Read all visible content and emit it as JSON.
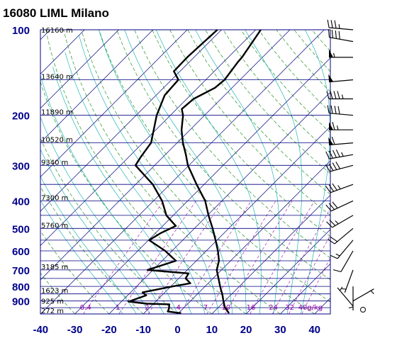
{
  "title": "16080 LIML Milano",
  "chart_data": {
    "type": "line",
    "title": "16080 LIML Milano",
    "x_axis_ticks": [
      -40,
      -30,
      -20,
      -10,
      0,
      10,
      20,
      30,
      40
    ],
    "pressure_ticks": [
      100,
      200,
      300,
      400,
      500,
      600,
      700,
      800,
      900
    ],
    "pressure_range": [
      100,
      1000
    ],
    "temperature_range": [
      -40,
      45
    ],
    "y_scale": "log",
    "height_labels": [
      {
        "p": 100,
        "text": "16160 m"
      },
      {
        "p": 150,
        "text": "13640 m"
      },
      {
        "p": 200,
        "text": "11890 m"
      },
      {
        "p": 250,
        "text": "10520 m"
      },
      {
        "p": 300,
        "text": "9340 m"
      },
      {
        "p": 400,
        "text": "7300 m"
      },
      {
        "p": 500,
        "text": "5760 m"
      },
      {
        "p": 700,
        "text": "3185 m"
      },
      {
        "p": 850,
        "text": "1623 m"
      },
      {
        "p": 925,
        "text": "925 m"
      },
      {
        "p": 1000,
        "text": "272 m"
      }
    ],
    "mixing_ratio_labels": [
      "0.4",
      "1",
      "2",
      "4",
      "7",
      "10",
      "16",
      "24",
      "32",
      "40g/kg"
    ],
    "series": [
      {
        "role": "temperature",
        "color": "#000000",
        "points": [
          [
            994,
            14.8
          ],
          [
            975,
            13.6
          ],
          [
            950,
            12.0
          ],
          [
            925,
            10.8
          ],
          [
            900,
            9.6
          ],
          [
            875,
            8.4
          ],
          [
            850,
            7.2
          ],
          [
            825,
            5.8
          ],
          [
            800,
            4.4
          ],
          [
            750,
            1.6
          ],
          [
            700,
            -1.4
          ],
          [
            650,
            -3.4
          ],
          [
            600,
            -6.6
          ],
          [
            550,
            -10.4
          ],
          [
            500,
            -14.7
          ],
          [
            450,
            -19.7
          ],
          [
            400,
            -24.9
          ],
          [
            350,
            -32.2
          ],
          [
            300,
            -40.3
          ],
          [
            275,
            -44.0
          ],
          [
            250,
            -48.3
          ],
          [
            225,
            -52.5
          ],
          [
            200,
            -56.3
          ],
          [
            190,
            -58.5
          ],
          [
            175,
            -58.0
          ],
          [
            160,
            -55.0
          ],
          [
            150,
            -54.5
          ],
          [
            130,
            -55.8
          ],
          [
            125,
            -56.0
          ],
          [
            100,
            -58.5
          ]
        ]
      },
      {
        "role": "dewpoint",
        "color": "#000000",
        "points": [
          [
            994,
            0.8
          ],
          [
            980,
            -3.6
          ],
          [
            960,
            -4.0
          ],
          [
            925,
            -5.2
          ],
          [
            920,
            -12.0
          ],
          [
            905,
            -17.9
          ],
          [
            860,
            -14.6
          ],
          [
            840,
            -16.5
          ],
          [
            800,
            -9.4
          ],
          [
            780,
            -5.2
          ],
          [
            750,
            -8.0
          ],
          [
            720,
            -8.6
          ],
          [
            700,
            -21.6
          ],
          [
            650,
            -16.0
          ],
          [
            600,
            -22.0
          ],
          [
            550,
            -29.8
          ],
          [
            520,
            -28.5
          ],
          [
            490,
            -26.2
          ],
          [
            450,
            -32.0
          ],
          [
            400,
            -37.5
          ],
          [
            350,
            -45.0
          ],
          [
            300,
            -55.6
          ],
          [
            280,
            -56.5
          ],
          [
            250,
            -57.6
          ],
          [
            200,
            -64.0
          ],
          [
            170,
            -67.5
          ],
          [
            150,
            -68.0
          ],
          [
            140,
            -71.8
          ],
          [
            125,
            -72.0
          ],
          [
            100,
            -71.2
          ]
        ]
      }
    ],
    "wind_barbs": [
      {
        "p": 100,
        "dir": 275,
        "speed": 35
      },
      {
        "p": 110,
        "dir": 280,
        "speed": 40
      },
      {
        "p": 125,
        "dir": 270,
        "speed": 55
      },
      {
        "p": 150,
        "dir": 265,
        "speed": 50
      },
      {
        "p": 175,
        "dir": 270,
        "speed": 45
      },
      {
        "p": 200,
        "dir": 275,
        "speed": 40
      },
      {
        "p": 225,
        "dir": 270,
        "speed": 65
      },
      {
        "p": 250,
        "dir": 265,
        "speed": 60
      },
      {
        "p": 275,
        "dir": 260,
        "speed": 45
      },
      {
        "p": 300,
        "dir": 255,
        "speed": 40
      },
      {
        "p": 350,
        "dir": 250,
        "speed": 35
      },
      {
        "p": 400,
        "dir": 245,
        "speed": 30
      },
      {
        "p": 450,
        "dir": 240,
        "speed": 25
      },
      {
        "p": 500,
        "dir": 230,
        "speed": 20
      },
      {
        "p": 550,
        "dir": 220,
        "speed": 15
      },
      {
        "p": 600,
        "dir": 210,
        "speed": 10
      },
      {
        "p": 700,
        "dir": 200,
        "speed": 5
      },
      {
        "p": 800,
        "dir": 180,
        "speed": 5
      },
      {
        "p": 900,
        "dir": 60,
        "speed": 5
      },
      {
        "p": 950,
        "dir": 320,
        "speed": 5
      },
      {
        "p": 1000,
        "dir": 0,
        "speed": 0
      }
    ]
  },
  "colors": {
    "isobar": "#000080",
    "isotherm": "#000080",
    "dry_adiabat": "#008000",
    "moist_adiabat": "#00aaaa",
    "mixing_ratio": "#9900aa",
    "profile": "#000000",
    "axis_text": "#00008b"
  }
}
